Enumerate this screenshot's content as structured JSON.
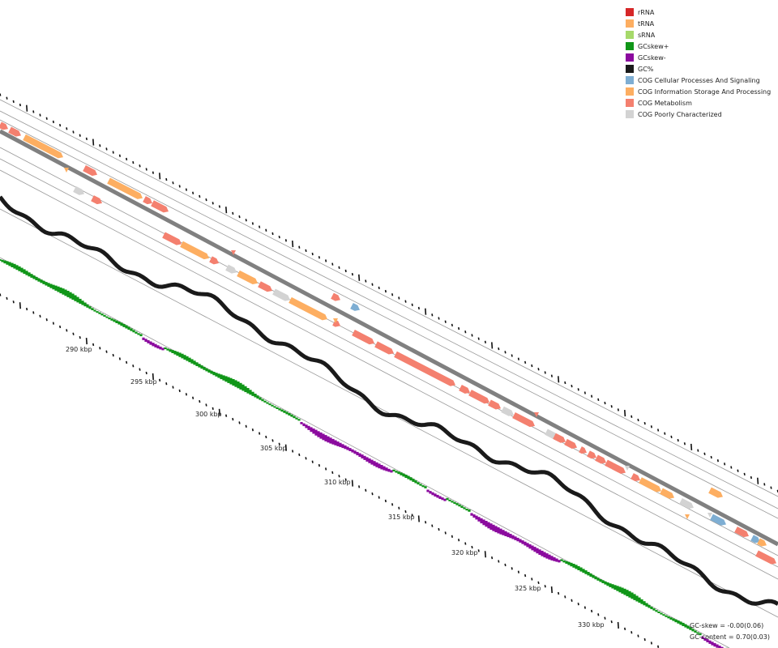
{
  "legend": [
    {
      "label": "rRNA",
      "color": "#d62728"
    },
    {
      "label": "tRNA",
      "color": "#fdae61"
    },
    {
      "label": "sRNA",
      "color": "#a6d96a"
    },
    {
      "label": "GCskew+",
      "color": "#109618"
    },
    {
      "label": "GCskew-",
      "color": "#8b0a9e"
    },
    {
      "label": "GC%",
      "color": "#1a1a1a"
    },
    {
      "label": "COG Cellular Processes And Signaling",
      "color": "#7eaed3"
    },
    {
      "label": "COG Information Storage And Processing",
      "color": "#fdae61"
    },
    {
      "label": "COG Metabolism",
      "color": "#f4806f"
    },
    {
      "label": "COG Poorly Characterized",
      "color": "#d3d3d3"
    }
  ],
  "stats": {
    "gc_skew": "GC-skew = -0.00(0.06)",
    "gc_content": "GC-content = 0.70(0.03)"
  },
  "position_labels": [
    "290 kbp",
    "295 kbp",
    "300 kbp",
    "305 kbp",
    "310 kbp",
    "315 kbp",
    "320 kbp",
    "325 kbp",
    "330 kbp"
  ],
  "colors": {
    "gc_plus": "#109618",
    "gc_minus": "#8b0a9e",
    "gc_percent": "#1a1a1a",
    "backbone": "#7a7a7a",
    "guide": "#9a9a9a",
    "cog_info": "#fdae61",
    "cog_metab": "#f4806f",
    "cog_cell": "#7eaed3",
    "cog_poor": "#d3d3d3"
  }
}
